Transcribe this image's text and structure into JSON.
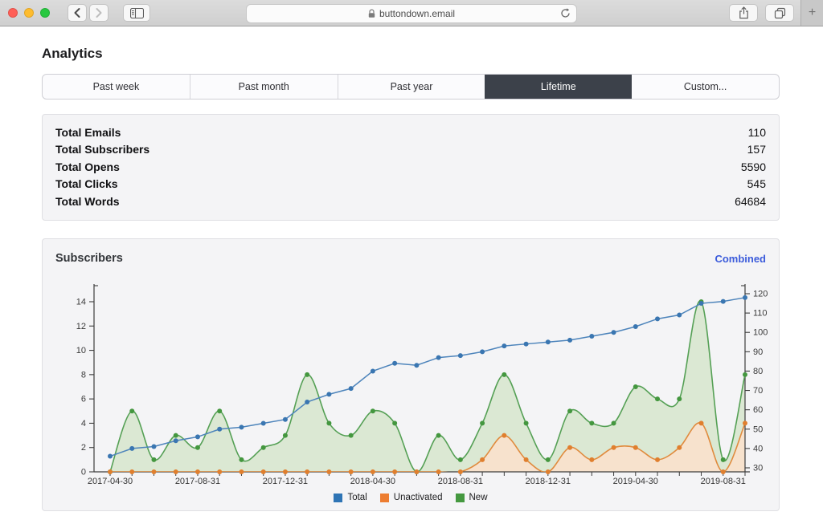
{
  "browser": {
    "url_text": "buttondown.email",
    "new_tab_label": "+",
    "icons": [
      "back-chevron",
      "forward-chevron",
      "sidebar-toggle",
      "lock",
      "reload",
      "share",
      "tab-overview"
    ]
  },
  "page": {
    "title": "Analytics",
    "time_tabs": [
      {
        "label": "Past week",
        "selected": false
      },
      {
        "label": "Past month",
        "selected": false
      },
      {
        "label": "Past year",
        "selected": false
      },
      {
        "label": "Lifetime",
        "selected": true
      },
      {
        "label": "Custom...",
        "selected": false
      }
    ],
    "selected_tab_color": "#3c414a",
    "stats": [
      {
        "label": "Total Emails",
        "value": "110"
      },
      {
        "label": "Total Subscribers",
        "value": "157"
      },
      {
        "label": "Total Opens",
        "value": "5590"
      },
      {
        "label": "Total Clicks",
        "value": "545"
      },
      {
        "label": "Total Words",
        "value": "64684"
      }
    ],
    "chart_panel": {
      "title": "Subscribers",
      "mode_link": "Combined",
      "mode_link_color": "#3b5bdb"
    }
  },
  "chart_data": {
    "type": "line",
    "title": "Subscribers",
    "n_points": 30,
    "x_tick_labels": [
      "2017-04-30",
      "2017-08-31",
      "2017-12-31",
      "2018-04-30",
      "2018-08-31",
      "2018-12-31",
      "2019-04-30",
      "2019-08-31"
    ],
    "x_tick_label_indices": [
      0,
      4,
      8,
      12,
      16,
      20,
      24,
      28
    ],
    "left_axis": {
      "min": 0,
      "max": 14,
      "step": 2
    },
    "right_axis": {
      "min": 30,
      "max": 120,
      "step": 10
    },
    "grid": false,
    "legend_position": "bottom-center",
    "series": [
      {
        "name": "New",
        "axis": "left",
        "smooth": true,
        "line_color": "#55a055",
        "dot_color": "#44973f",
        "fill_color": "#dbe8d3",
        "values": [
          0,
          5,
          1,
          3,
          2,
          5,
          1,
          2,
          3,
          8,
          4,
          3,
          5,
          4,
          0,
          3,
          1,
          4,
          8,
          4,
          1,
          5,
          4,
          4,
          7,
          6,
          6,
          14,
          1,
          8
        ]
      },
      {
        "name": "Unactivated",
        "axis": "left",
        "smooth": true,
        "line_color": "#e08b3e",
        "dot_color": "#e07f2e",
        "fill_color": "#f7e2cd",
        "values": [
          0,
          0,
          0,
          0,
          0,
          0,
          0,
          0,
          0,
          0,
          0,
          0,
          0,
          0,
          0,
          0,
          0,
          1,
          3,
          1,
          0,
          2,
          1,
          2,
          2,
          1,
          2,
          4,
          0,
          4
        ]
      },
      {
        "name": "Total",
        "axis": "right",
        "smooth": false,
        "line_color": "#4d84bb",
        "dot_color": "#3a76b1",
        "fill_color": null,
        "values": [
          36,
          40,
          41,
          44,
          46,
          50,
          51,
          53,
          55,
          64,
          68,
          71,
          80,
          84,
          83,
          87,
          88,
          90,
          93,
          94,
          95,
          96,
          98,
          100,
          103,
          107,
          109,
          115,
          116,
          118
        ]
      }
    ],
    "legend": [
      {
        "label": "Total",
        "color": "#2e74b5"
      },
      {
        "label": "Unactivated",
        "color": "#ed7d31"
      },
      {
        "label": "New",
        "color": "#44983f"
      }
    ]
  }
}
